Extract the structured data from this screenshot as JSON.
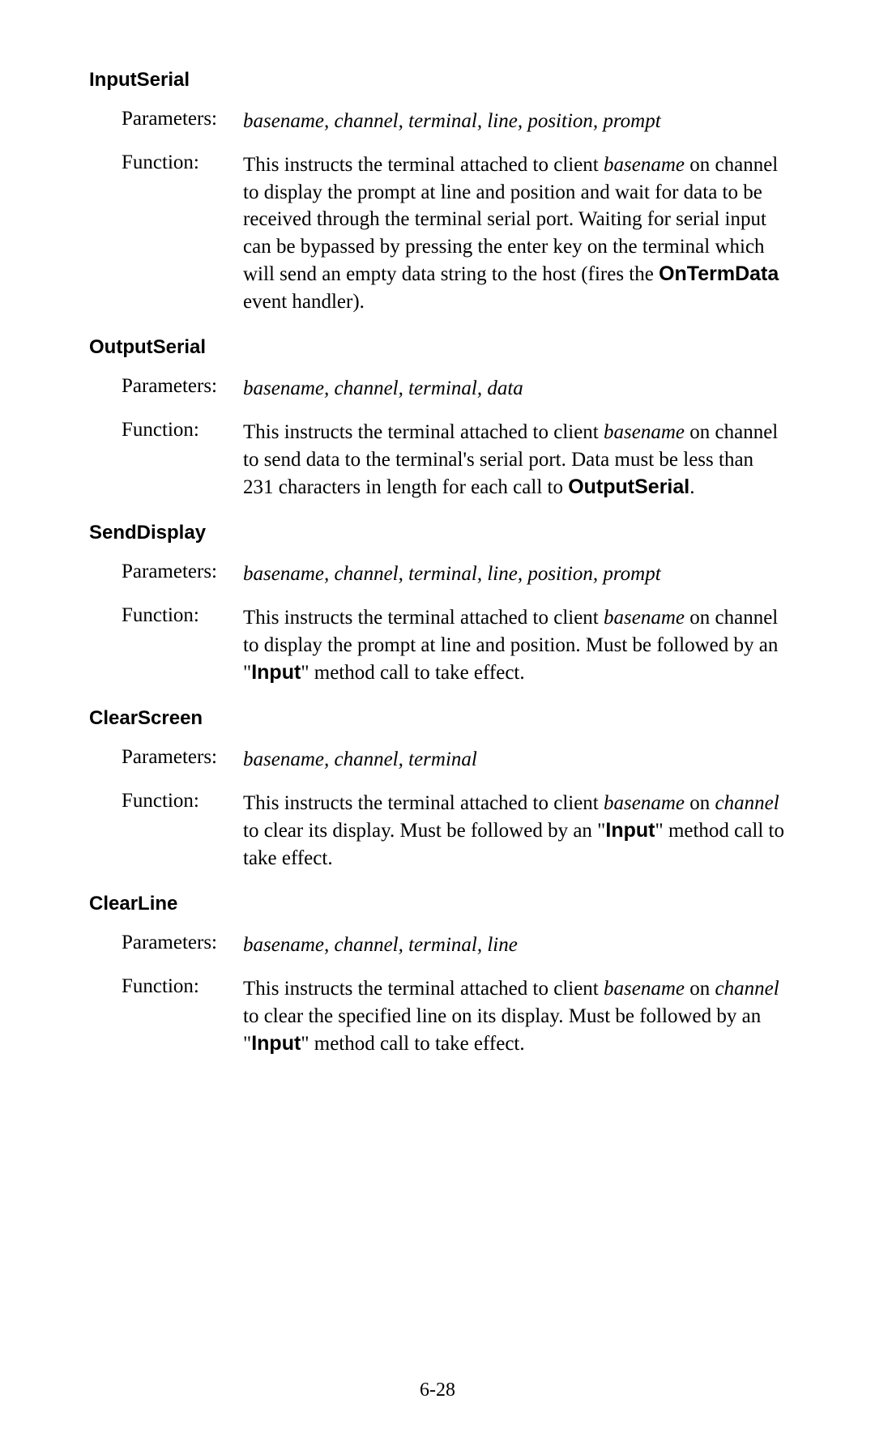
{
  "pageNumber": "6-28",
  "labels": {
    "parameters": "Parameters:",
    "function": "Function:"
  },
  "sections": [
    {
      "title": "InputSerial",
      "parameters": "basename, channel, terminal, line, position, prompt",
      "functionParts": [
        {
          "text": "This instructs the terminal attached to client ",
          "style": "normal"
        },
        {
          "text": "basename",
          "style": "italic"
        },
        {
          "text": " on channel to display the prompt at line and position and wait for data to be received through the terminal serial port. Waiting for serial input can be bypassed by pressing the enter key on the terminal which will send an empty data string to the host (fires the ",
          "style": "normal"
        },
        {
          "text": "OnTermData",
          "style": "bold-sans"
        },
        {
          "text": " event handler).",
          "style": "normal"
        }
      ]
    },
    {
      "title": "OutputSerial",
      "parameters": "basename, channel, terminal, data",
      "functionParts": [
        {
          "text": "This instructs the terminal attached to client ",
          "style": "normal"
        },
        {
          "text": "basename",
          "style": "italic"
        },
        {
          "text": " on channel to send data to the terminal's serial port. Data must be less than 231 characters in length for each call to ",
          "style": "normal"
        },
        {
          "text": "OutputSerial",
          "style": "bold-sans"
        },
        {
          "text": ".",
          "style": "normal"
        }
      ]
    },
    {
      "title": "SendDisplay",
      "parameters": "basename, channel, terminal, line, position, prompt",
      "functionParts": [
        {
          "text": "This instructs the terminal attached to client ",
          "style": "normal"
        },
        {
          "text": "basename",
          "style": "italic"
        },
        {
          "text": " on channel to display the prompt at line and position. Must be followed by an \"",
          "style": "normal"
        },
        {
          "text": "Input",
          "style": "bold-sans"
        },
        {
          "text": "\" method call to take effect.",
          "style": "normal"
        }
      ]
    },
    {
      "title": "ClearScreen",
      "parameters": "basename, channel, terminal",
      "functionParts": [
        {
          "text": "This instructs the terminal attached to client ",
          "style": "normal"
        },
        {
          "text": "basename",
          "style": "italic"
        },
        {
          "text": " on ",
          "style": "normal"
        },
        {
          "text": "channel",
          "style": "italic"
        },
        {
          "text": " to clear its display. Must be followed by an \"",
          "style": "normal"
        },
        {
          "text": "Input",
          "style": "bold-sans"
        },
        {
          "text": "\" method call to take effect.",
          "style": "normal"
        }
      ]
    },
    {
      "title": "ClearLine",
      "parameters": "basename, channel, terminal, line",
      "functionParts": [
        {
          "text": "This instructs the terminal attached to client ",
          "style": "normal"
        },
        {
          "text": "basename",
          "style": "italic"
        },
        {
          "text": " on ",
          "style": "normal"
        },
        {
          "text": "channel",
          "style": "italic"
        },
        {
          "text": " to clear the specified line on its display. Must be followed by an \"",
          "style": "normal"
        },
        {
          "text": "Input",
          "style": "bold-sans"
        },
        {
          "text": "\" method call to take effect.",
          "style": "normal"
        }
      ]
    }
  ]
}
